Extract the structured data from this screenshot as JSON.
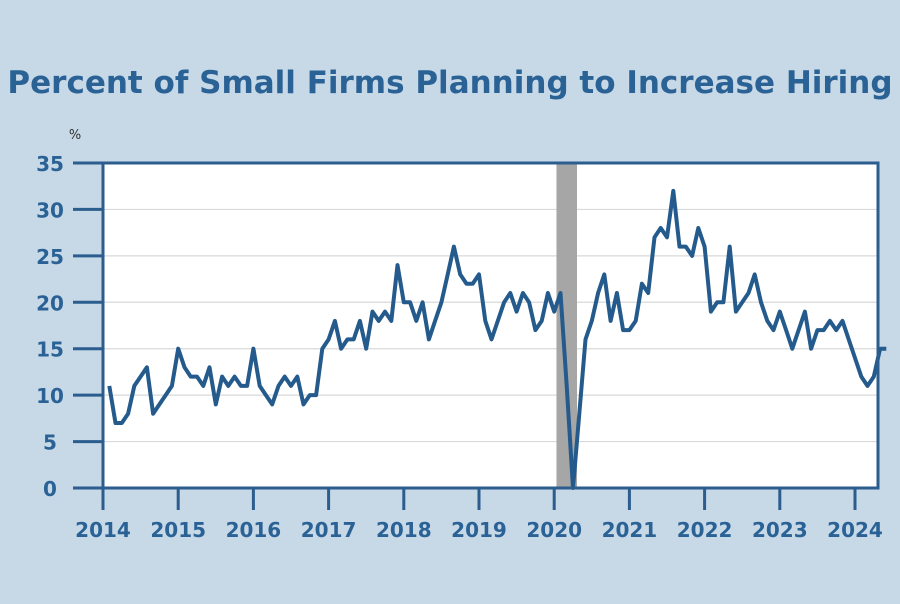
{
  "chart_data": {
    "type": "line",
    "title": "Percent of Small Firms Planning to Increase Hiring",
    "ylabel": "%",
    "xlabel": "",
    "ylim": [
      0,
      35
    ],
    "yticks": [
      "0",
      "5",
      "10",
      "15",
      "20",
      "25",
      "30",
      "35"
    ],
    "xticks": [
      "2014",
      "2015",
      "2016",
      "2017",
      "2018",
      "2019",
      "2020",
      "2021",
      "2022",
      "2023",
      "2024"
    ],
    "grid": true,
    "start_month": "2014-02",
    "values": [
      11,
      7,
      7,
      8,
      11,
      12,
      13,
      8,
      9,
      10,
      11,
      15,
      13,
      12,
      12,
      11,
      13,
      9,
      12,
      11,
      12,
      11,
      11,
      15,
      11,
      10,
      9,
      11,
      12,
      11,
      12,
      9,
      10,
      10,
      15,
      16,
      18,
      15,
      16,
      16,
      18,
      15,
      19,
      18,
      19,
      18,
      24,
      20,
      20,
      18,
      20,
      16,
      18,
      20,
      23,
      26,
      23,
      22,
      22,
      23,
      18,
      16,
      18,
      20,
      21,
      19,
      21,
      20,
      17,
      18,
      21,
      19,
      21,
      11,
      0,
      8,
      16,
      18,
      21,
      23,
      18,
      21,
      17,
      17,
      18,
      22,
      21,
      27,
      28,
      27,
      32,
      26,
      26,
      25,
      28,
      26,
      19,
      20,
      20,
      26,
      19,
      20,
      21,
      23,
      20,
      18,
      17,
      19,
      17,
      15,
      17,
      19,
      15,
      17,
      17,
      18,
      17,
      18,
      16,
      14,
      12,
      11,
      12,
      15,
      15
    ],
    "shaded_periods": [
      [
        "2020-02",
        "2020-04"
      ]
    ],
    "colors": {
      "background": "#c7d8e7",
      "line": "#245b8c",
      "title": "#2a6296",
      "shading": "#a6a6a6",
      "axis": "#2b5d8e"
    }
  }
}
